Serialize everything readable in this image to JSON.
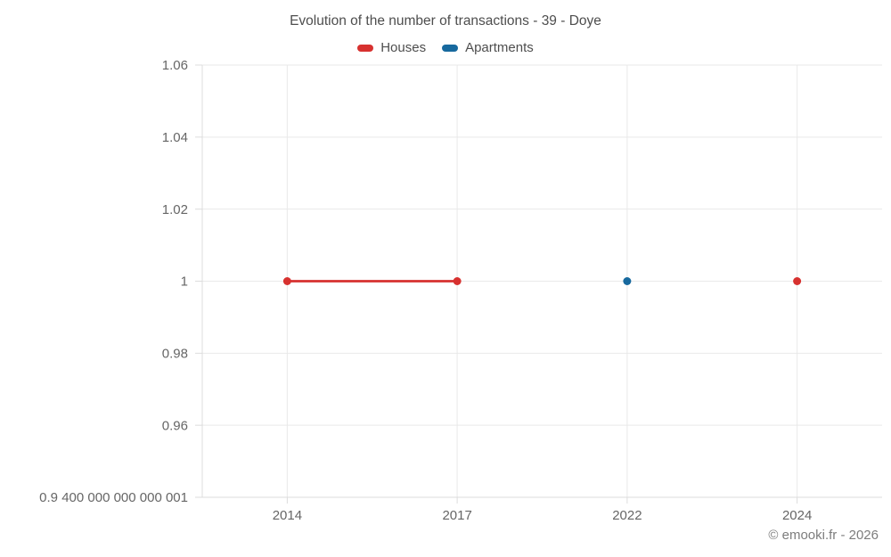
{
  "header": {
    "title": "Evolution of the number of transactions - 39 - Doye"
  },
  "legend": [
    {
      "label": "Houses",
      "color": "#d7312f"
    },
    {
      "label": "Apartments",
      "color": "#17699e"
    }
  ],
  "footer": {
    "copyright": "© emooki.fr - 2026"
  },
  "chart_data": {
    "type": "line",
    "title": "Evolution of the number of transactions - 39 - Doye",
    "categories": [
      "2014",
      "2017",
      "2022",
      "2024"
    ],
    "series": [
      {
        "name": "Houses",
        "color": "#d7312f",
        "values": [
          1,
          1,
          null,
          1
        ]
      },
      {
        "name": "Apartments",
        "color": "#17699e",
        "values": [
          null,
          null,
          1,
          null
        ]
      }
    ],
    "ylim": [
      0.9400000000000001,
      1.06
    ],
    "yticks": [
      {
        "value": 1.06,
        "label": "1.06"
      },
      {
        "value": 1.04,
        "label": "1.04"
      },
      {
        "value": 1.02,
        "label": "1.02"
      },
      {
        "value": 1,
        "label": "1"
      },
      {
        "value": 0.98,
        "label": "0.98"
      },
      {
        "value": 0.96,
        "label": "0.96"
      },
      {
        "value": 0.9400000000000001,
        "label": "0.9 400 000 000 000 001"
      }
    ],
    "grid": true,
    "legend_position": "top",
    "xlabel": "",
    "ylabel": ""
  }
}
